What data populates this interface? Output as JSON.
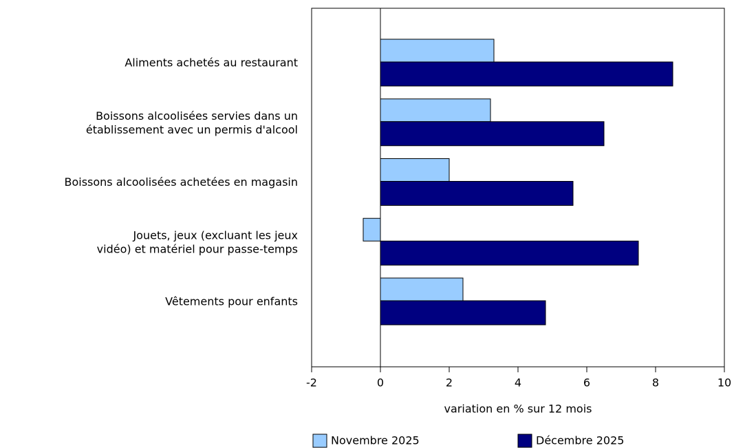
{
  "chart_data": {
    "type": "bar",
    "orientation": "horizontal",
    "categories": [
      "Aliments achetés au restaurant",
      "Boissons alcoolisées servies dans un\nétablissement avec un permis d'alcool",
      "Boissons alcoolisées achetées en magasin",
      "Jouets, jeux (excluant les jeux\nvidéo) et matériel pour passe-temps",
      "Vêtements pour enfants"
    ],
    "series": [
      {
        "name": "Novembre 2025",
        "color": "#99ccff",
        "values": [
          3.3,
          3.2,
          2.0,
          -0.5,
          2.4
        ]
      },
      {
        "name": "Décembre 2025",
        "color": "#000080",
        "values": [
          8.5,
          6.5,
          5.6,
          7.5,
          4.8
        ]
      }
    ],
    "xlabel": "variation en % sur 12 mois",
    "xlim": [
      -2,
      10
    ],
    "xticks": [
      -2,
      0,
      2,
      4,
      6,
      8,
      10
    ],
    "legend": "bottom"
  }
}
